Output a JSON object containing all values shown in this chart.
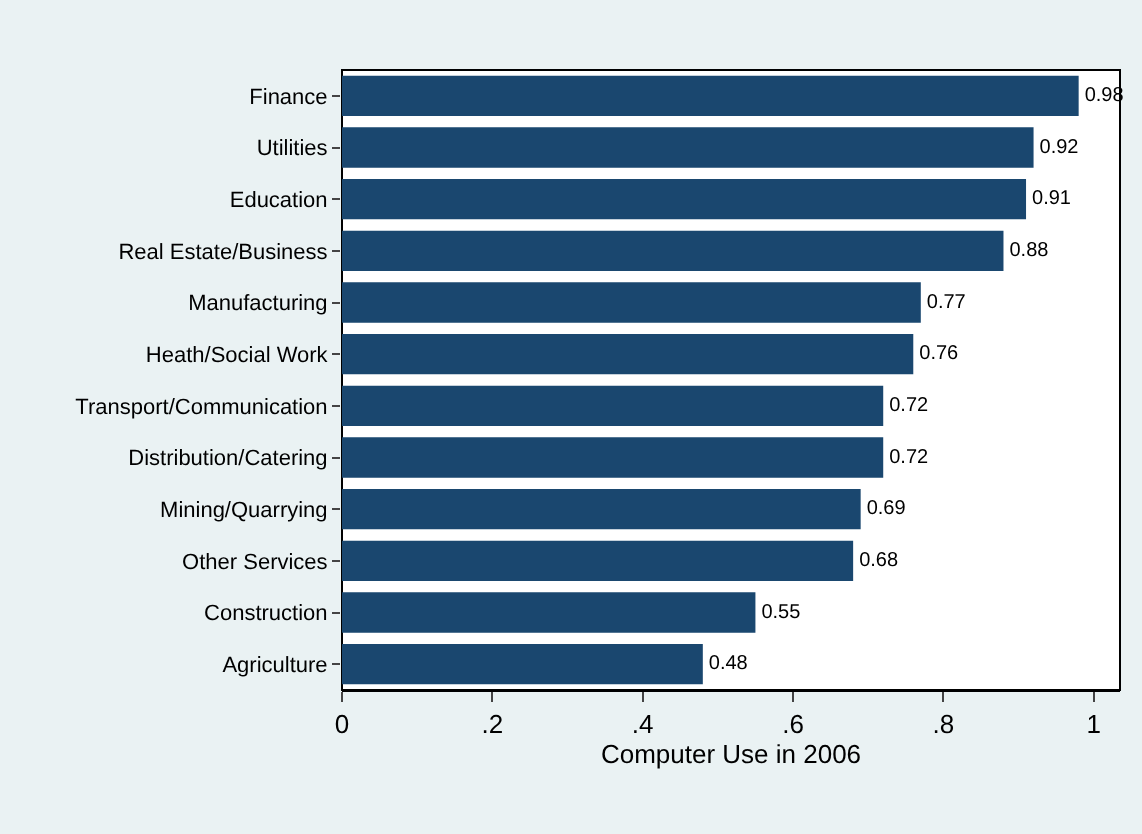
{
  "chart_data": {
    "type": "bar",
    "orientation": "horizontal",
    "xlabel": "Computer Use in 2006",
    "categories": [
      "Finance",
      "Utilities",
      "Education",
      "Real Estate/Business",
      "Manufacturing",
      "Heath/Social Work",
      "Transport/Communication",
      "Distribution/Catering",
      "Mining/Quarrying",
      "Other Services",
      "Construction",
      "Agriculture"
    ],
    "values": [
      0.98,
      0.92,
      0.91,
      0.88,
      0.77,
      0.76,
      0.72,
      0.72,
      0.69,
      0.68,
      0.55,
      0.48
    ],
    "color": "#1a476f",
    "data_labels": true,
    "grid": false,
    "legend": false,
    "xlim": [
      0,
      1.035
    ],
    "xticks": [
      0,
      {
        "value": 0.2,
        "label": ".2"
      },
      {
        "value": 0.4,
        "label": ".4"
      },
      {
        "value": 0.6,
        "label": ".6"
      },
      {
        "value": 0.8,
        "label": ".8"
      },
      1
    ]
  }
}
